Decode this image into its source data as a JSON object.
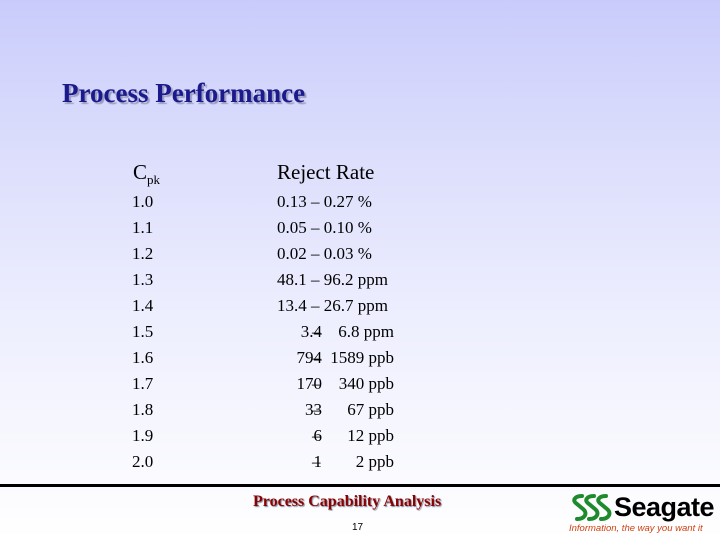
{
  "slide": {
    "title": "Process Performance",
    "col_cpk": "C",
    "col_cpk_sub": "pk",
    "col_rate": "Reject Rate",
    "rows": [
      {
        "cpk": "1.0",
        "rate": "0.13 – 0.27 %"
      },
      {
        "cpk": "1.1",
        "rate": "0.05 – 0.10 %"
      },
      {
        "cpk": "1.2",
        "rate": "0.02 – 0.03 %"
      },
      {
        "cpk": "1.3",
        "rate": "48.1 – 96.2 ppm"
      },
      {
        "cpk": "1.4",
        "rate": "13.4 – 26.7 ppm"
      },
      {
        "cpk": "1.5",
        "lo": "3.4",
        "hi": "6.8 ppm"
      },
      {
        "cpk": "1.6",
        "lo": "794",
        "hi": "1589 ppb"
      },
      {
        "cpk": "1.7",
        "lo": "170",
        "hi": "340 ppb"
      },
      {
        "cpk": "1.8",
        "lo": "33",
        "hi": "67 ppb"
      },
      {
        "cpk": "1.9",
        "lo": "6",
        "hi": "12 ppb"
      },
      {
        "cpk": "2.0",
        "lo": "1",
        "hi": "2 ppb"
      }
    ],
    "dash": "–"
  },
  "footer": {
    "title": "Process Capability Analysis",
    "page": "17"
  },
  "logo": {
    "name": "Seagate",
    "tagline": "Information, the way you want it",
    "color_mark": "#1f8a2c",
    "color_tagline": "#d04010"
  }
}
